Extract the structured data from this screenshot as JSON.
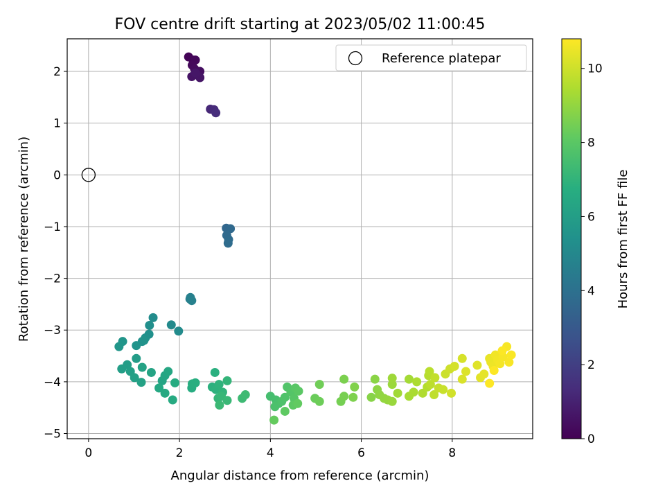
{
  "chart_data": {
    "type": "scatter",
    "title": "FOV centre drift starting at 2023/05/02 11:00:45",
    "xlabel": "Angular distance from reference (arcmin)",
    "ylabel": "Rotation from reference (arcmin)",
    "xlim": [
      -0.47,
      9.77
    ],
    "ylim": [
      -5.1,
      2.63
    ],
    "xticks": [
      0,
      2,
      4,
      6,
      8
    ],
    "yticks": [
      -5,
      -4,
      -3,
      -2,
      -1,
      0,
      1,
      2
    ],
    "grid": true,
    "legend": {
      "placement": "top-right",
      "entries": [
        "Reference platepar"
      ]
    },
    "reference_point": {
      "x": 0,
      "y": 0,
      "label": "Reference platepar"
    },
    "colorbar": {
      "label": "Hours from first FF file",
      "range": [
        0,
        10.8
      ],
      "ticks": [
        0,
        2,
        4,
        6,
        8,
        10
      ],
      "colormap": "viridis"
    },
    "points": [
      {
        "x": 2.2,
        "y": 2.28,
        "c": 0.1
      },
      {
        "x": 2.3,
        "y": 2.22,
        "c": 0.15
      },
      {
        "x": 2.35,
        "y": 2.22,
        "c": 0.2
      },
      {
        "x": 2.28,
        "y": 2.12,
        "c": 0.25
      },
      {
        "x": 2.33,
        "y": 2.05,
        "c": 0.3
      },
      {
        "x": 2.4,
        "y": 2.0,
        "c": 0.35
      },
      {
        "x": 2.45,
        "y": 2.0,
        "c": 0.4
      },
      {
        "x": 2.38,
        "y": 1.95,
        "c": 0.45
      },
      {
        "x": 2.42,
        "y": 1.92,
        "c": 0.5
      },
      {
        "x": 2.27,
        "y": 1.9,
        "c": 0.55
      },
      {
        "x": 2.45,
        "y": 1.88,
        "c": 0.6
      },
      {
        "x": 2.35,
        "y": 1.97,
        "c": 0.65
      },
      {
        "x": 2.68,
        "y": 1.27,
        "c": 1.2
      },
      {
        "x": 2.76,
        "y": 1.26,
        "c": 1.3
      },
      {
        "x": 2.8,
        "y": 1.2,
        "c": 1.4
      },
      {
        "x": 3.03,
        "y": -1.03,
        "c": 3.6
      },
      {
        "x": 3.12,
        "y": -1.04,
        "c": 3.65
      },
      {
        "x": 3.04,
        "y": -1.17,
        "c": 3.7
      },
      {
        "x": 3.08,
        "y": -1.25,
        "c": 3.75
      },
      {
        "x": 3.07,
        "y": -1.32,
        "c": 3.8
      },
      {
        "x": 2.23,
        "y": -2.4,
        "c": 4.6
      },
      {
        "x": 2.24,
        "y": -2.37,
        "c": 4.65
      },
      {
        "x": 2.27,
        "y": -2.43,
        "c": 4.7
      },
      {
        "x": 1.82,
        "y": -2.9,
        "c": 5.1
      },
      {
        "x": 1.98,
        "y": -3.02,
        "c": 5.15
      },
      {
        "x": 1.42,
        "y": -2.76,
        "c": 5.2
      },
      {
        "x": 1.34,
        "y": -2.91,
        "c": 5.3
      },
      {
        "x": 1.33,
        "y": -3.08,
        "c": 5.35
      },
      {
        "x": 1.25,
        "y": -3.15,
        "c": 5.4
      },
      {
        "x": 1.18,
        "y": -3.22,
        "c": 5.45
      },
      {
        "x": 1.22,
        "y": -3.2,
        "c": 5.5
      },
      {
        "x": 1.05,
        "y": -3.3,
        "c": 5.55
      },
      {
        "x": 0.75,
        "y": -3.22,
        "c": 5.6
      },
      {
        "x": 0.67,
        "y": -3.32,
        "c": 5.65
      },
      {
        "x": 1.05,
        "y": -3.55,
        "c": 5.9
      },
      {
        "x": 0.85,
        "y": -3.67,
        "c": 5.95
      },
      {
        "x": 0.73,
        "y": -3.75,
        "c": 6.0
      },
      {
        "x": 0.92,
        "y": -3.8,
        "c": 6.05
      },
      {
        "x": 1.01,
        "y": -3.92,
        "c": 6.1
      },
      {
        "x": 1.16,
        "y": -4.01,
        "c": 6.15
      },
      {
        "x": 1.18,
        "y": -3.72,
        "c": 6.2
      },
      {
        "x": 1.38,
        "y": -3.82,
        "c": 6.25
      },
      {
        "x": 1.62,
        "y": -3.98,
        "c": 6.3
      },
      {
        "x": 1.68,
        "y": -3.88,
        "c": 6.35
      },
      {
        "x": 1.75,
        "y": -3.8,
        "c": 6.4
      },
      {
        "x": 1.55,
        "y": -4.12,
        "c": 6.45
      },
      {
        "x": 1.68,
        "y": -4.22,
        "c": 6.5
      },
      {
        "x": 1.85,
        "y": -4.35,
        "c": 6.55
      },
      {
        "x": 1.9,
        "y": -4.02,
        "c": 6.6
      },
      {
        "x": 2.27,
        "y": -4.12,
        "c": 6.65
      },
      {
        "x": 2.28,
        "y": -4.04,
        "c": 6.7
      },
      {
        "x": 2.35,
        "y": -4.02,
        "c": 6.75
      },
      {
        "x": 2.78,
        "y": -3.82,
        "c": 6.8
      },
      {
        "x": 2.72,
        "y": -4.1,
        "c": 6.85
      },
      {
        "x": 2.8,
        "y": -4.15,
        "c": 6.9
      },
      {
        "x": 2.87,
        "y": -4.05,
        "c": 6.95
      },
      {
        "x": 2.95,
        "y": -4.2,
        "c": 7.0
      },
      {
        "x": 3.05,
        "y": -3.98,
        "c": 7.05
      },
      {
        "x": 2.85,
        "y": -4.32,
        "c": 7.1
      },
      {
        "x": 2.92,
        "y": -4.28,
        "c": 7.15
      },
      {
        "x": 3.05,
        "y": -4.36,
        "c": 7.2
      },
      {
        "x": 2.88,
        "y": -4.45,
        "c": 7.25
      },
      {
        "x": 3.38,
        "y": -4.32,
        "c": 7.3
      },
      {
        "x": 3.45,
        "y": -4.25,
        "c": 7.35
      },
      {
        "x": 4.0,
        "y": -4.28,
        "c": 7.5
      },
      {
        "x": 4.12,
        "y": -4.35,
        "c": 7.55
      },
      {
        "x": 4.18,
        "y": -4.42,
        "c": 7.6
      },
      {
        "x": 4.1,
        "y": -4.48,
        "c": 7.65
      },
      {
        "x": 4.25,
        "y": -4.38,
        "c": 7.7
      },
      {
        "x": 4.32,
        "y": -4.3,
        "c": 7.75
      },
      {
        "x": 4.37,
        "y": -4.1,
        "c": 7.8
      },
      {
        "x": 4.45,
        "y": -4.2,
        "c": 7.85
      },
      {
        "x": 4.52,
        "y": -4.32,
        "c": 7.9
      },
      {
        "x": 4.55,
        "y": -4.12,
        "c": 7.95
      },
      {
        "x": 4.62,
        "y": -4.18,
        "c": 8.0
      },
      {
        "x": 4.5,
        "y": -4.45,
        "c": 8.05
      },
      {
        "x": 4.32,
        "y": -4.57,
        "c": 8.1
      },
      {
        "x": 4.6,
        "y": -4.42,
        "c": 8.15
      },
      {
        "x": 4.08,
        "y": -4.74,
        "c": 8.2
      },
      {
        "x": 4.98,
        "y": -4.32,
        "c": 8.3
      },
      {
        "x": 5.08,
        "y": -4.38,
        "c": 8.35
      },
      {
        "x": 5.08,
        "y": -4.05,
        "c": 8.4
      },
      {
        "x": 5.55,
        "y": -4.38,
        "c": 8.5
      },
      {
        "x": 5.62,
        "y": -4.28,
        "c": 8.55
      },
      {
        "x": 5.62,
        "y": -3.95,
        "c": 8.6
      },
      {
        "x": 5.82,
        "y": -4.3,
        "c": 8.65
      },
      {
        "x": 5.85,
        "y": -4.1,
        "c": 8.7
      },
      {
        "x": 6.22,
        "y": -4.3,
        "c": 8.8
      },
      {
        "x": 6.3,
        "y": -3.95,
        "c": 8.85
      },
      {
        "x": 6.35,
        "y": -4.15,
        "c": 8.9
      },
      {
        "x": 6.4,
        "y": -4.25,
        "c": 8.95
      },
      {
        "x": 6.5,
        "y": -4.32,
        "c": 9.0
      },
      {
        "x": 6.58,
        "y": -4.35,
        "c": 9.05
      },
      {
        "x": 6.68,
        "y": -4.38,
        "c": 9.1
      },
      {
        "x": 6.68,
        "y": -4.05,
        "c": 9.15
      },
      {
        "x": 6.68,
        "y": -3.93,
        "c": 9.2
      },
      {
        "x": 6.8,
        "y": -4.22,
        "c": 9.25
      },
      {
        "x": 7.05,
        "y": -3.95,
        "c": 9.3
      },
      {
        "x": 7.05,
        "y": -4.28,
        "c": 9.35
      },
      {
        "x": 7.15,
        "y": -4.2,
        "c": 9.4
      },
      {
        "x": 7.22,
        "y": -4.0,
        "c": 9.45
      },
      {
        "x": 7.35,
        "y": -4.22,
        "c": 9.5
      },
      {
        "x": 7.45,
        "y": -4.1,
        "c": 9.55
      },
      {
        "x": 7.48,
        "y": -3.88,
        "c": 9.6
      },
      {
        "x": 7.5,
        "y": -3.8,
        "c": 9.65
      },
      {
        "x": 7.52,
        "y": -4.05,
        "c": 9.7
      },
      {
        "x": 7.6,
        "y": -4.25,
        "c": 9.75
      },
      {
        "x": 7.62,
        "y": -3.92,
        "c": 9.8
      },
      {
        "x": 7.7,
        "y": -4.12,
        "c": 9.85
      },
      {
        "x": 7.8,
        "y": -4.15,
        "c": 9.9
      },
      {
        "x": 7.85,
        "y": -3.85,
        "c": 9.95
      },
      {
        "x": 7.95,
        "y": -3.75,
        "c": 10.0
      },
      {
        "x": 7.98,
        "y": -4.22,
        "c": 10.05
      },
      {
        "x": 8.05,
        "y": -3.7,
        "c": 10.1
      },
      {
        "x": 8.22,
        "y": -3.55,
        "c": 10.15
      },
      {
        "x": 8.22,
        "y": -3.95,
        "c": 10.2
      },
      {
        "x": 8.3,
        "y": -3.8,
        "c": 10.25
      },
      {
        "x": 8.55,
        "y": -3.68,
        "c": 10.3
      },
      {
        "x": 8.62,
        "y": -3.92,
        "c": 10.35
      },
      {
        "x": 8.7,
        "y": -3.85,
        "c": 10.4
      },
      {
        "x": 8.82,
        "y": -3.55,
        "c": 10.45
      },
      {
        "x": 8.85,
        "y": -3.62,
        "c": 10.5
      },
      {
        "x": 8.9,
        "y": -3.7,
        "c": 10.55
      },
      {
        "x": 8.95,
        "y": -3.48,
        "c": 10.6
      },
      {
        "x": 9.0,
        "y": -3.58,
        "c": 10.62
      },
      {
        "x": 9.05,
        "y": -3.65,
        "c": 10.65
      },
      {
        "x": 9.12,
        "y": -3.52,
        "c": 10.68
      },
      {
        "x": 9.2,
        "y": -3.32,
        "c": 10.7
      },
      {
        "x": 9.25,
        "y": -3.62,
        "c": 10.72
      },
      {
        "x": 9.3,
        "y": -3.48,
        "c": 10.75
      },
      {
        "x": 9.1,
        "y": -3.4,
        "c": 10.76
      },
      {
        "x": 8.92,
        "y": -3.78,
        "c": 10.78
      },
      {
        "x": 8.82,
        "y": -4.03,
        "c": 10.8
      }
    ]
  }
}
